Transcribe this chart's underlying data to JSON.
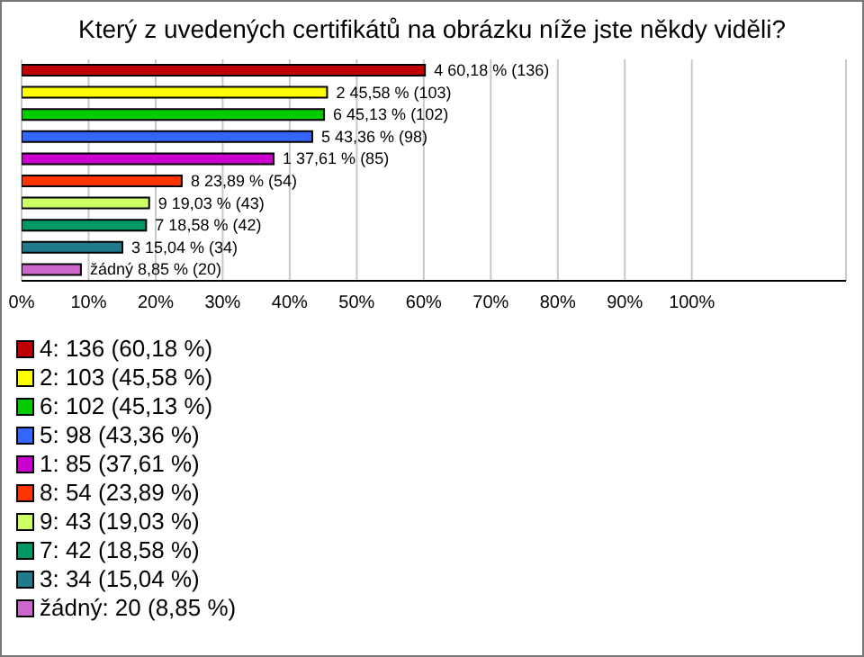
{
  "chart_data": {
    "type": "bar",
    "orientation": "horizontal",
    "title": "Který z uvedených certifikátů na obrázku níže jste někdy viděli?",
    "categories": [
      "4",
      "2",
      "6",
      "5",
      "1",
      "8",
      "9",
      "7",
      "3",
      "žádný"
    ],
    "values": [
      60.18,
      45.58,
      45.13,
      43.36,
      37.61,
      23.89,
      19.03,
      18.58,
      15.04,
      8.85
    ],
    "value_labels": [
      "60,18 % (136)",
      "45,58 % (103)",
      "45,13 % (102)",
      "43,36 % (98)",
      "37,61 % (85)",
      "23,89 % (54)",
      "19,03 % (43)",
      "18,58 % (42)",
      "15,04 % (34)",
      "8,85 % (20)"
    ],
    "colors": [
      "#c00000",
      "#ffff00",
      "#00cc00",
      "#3366ff",
      "#cc00cc",
      "#ff3300",
      "#ccff66",
      "#009966",
      "#1f7a8c",
      "#cc66cc"
    ],
    "xlim": [
      0,
      123
    ],
    "xticks": [
      {
        "value": 0,
        "label": "0%"
      },
      {
        "value": 10,
        "label": "10%"
      },
      {
        "value": 20,
        "label": "20%"
      },
      {
        "value": 30,
        "label": "30%"
      },
      {
        "value": 40,
        "label": "40%"
      },
      {
        "value": 50,
        "label": "50%"
      },
      {
        "value": 60,
        "label": "60%"
      },
      {
        "value": 70,
        "label": "70%"
      },
      {
        "value": 80,
        "label": "80%"
      },
      {
        "value": 90,
        "label": "90%"
      },
      {
        "value": 100,
        "label": "100%"
      }
    ],
    "grid": "x",
    "annotations": [
      "4: 136 (60,18 %)",
      "2: 103 (45,58 %)",
      "6: 102 (45,13 %)",
      "5: 98 (43,36 %)",
      "1: 85 (37,61 %)",
      "8: 54 (23,89 %)",
      "9: 43 (19,03 %)",
      "7: 42 (18,58 %)",
      "3: 34 (15,04 %)",
      "žádný: 20 (8,85 %)"
    ]
  }
}
